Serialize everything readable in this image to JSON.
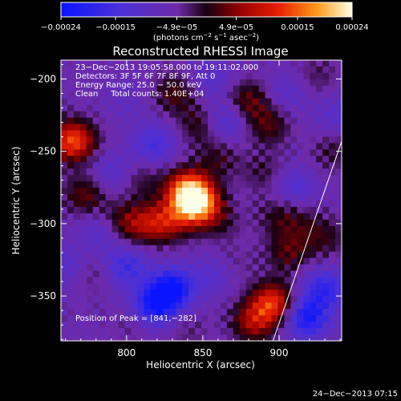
{
  "chart_data": {
    "type": "heatmap",
    "title": "Reconstructed RHESSI Image",
    "xlabel": "Heliocentric X (arcsec)",
    "ylabel": "Heliocentric Y (arcsec)",
    "xlim": [
      757,
      941
    ],
    "ylim": [
      -381,
      -187
    ],
    "x_ticks": [
      800,
      850,
      900
    ],
    "y_ticks": [
      -200,
      -250,
      -300,
      -350
    ],
    "x_tick_labels": [
      "800",
      "850",
      "900"
    ],
    "y_tick_labels": [
      "−200",
      "−250",
      "−300",
      "−350"
    ],
    "colorbar": {
      "range": [
        -0.00024,
        0.00024
      ],
      "tick_values": [
        -0.00024,
        -0.00015,
        -4.9e-05,
        4.9e-05,
        0.00015,
        0.00024
      ],
      "tick_labels": [
        "−0.00024",
        "−0.00015",
        "−4.9e−05",
        "4.9e−05",
        "0.00015",
        "0.00024"
      ],
      "units_prefix": "(photons cm",
      "units_exp1": "−2",
      "units_mid": " s",
      "units_exp2": "−1",
      "units_mid2": " asec",
      "units_exp3": "−2",
      "units_suffix": ")"
    },
    "annotations": {
      "time_range": "23−Dec−2013 19:05:58.000 to 19:11:02.000",
      "detectors": "Detectors: 3F 5F 6F 7F 8F 9F, Att 0",
      "energy_range": "Energy Range: 25.0 − 50.0 keV",
      "method": "Clean     Total counts: 1.40E+04",
      "peak": "Position of Peak = [841,−282]"
    },
    "limb_line": [
      [
        896,
        -381
      ],
      [
        941,
        -243
      ]
    ],
    "sources": [
      {
        "x": 847,
        "y": -287,
        "value": 0.00024
      },
      {
        "x": 840,
        "y": -277,
        "value": 0.00022
      },
      {
        "x": 828,
        "y": -298,
        "value": 0.00012
      },
      {
        "x": 812,
        "y": -300,
        "value": 0.0001
      },
      {
        "x": 795,
        "y": -300,
        "value": 9e-05
      },
      {
        "x": 773,
        "y": -280,
        "value": 9e-05
      },
      {
        "x": 765,
        "y": -243,
        "value": 0.0002
      },
      {
        "x": 810,
        "y": -270,
        "value": 5e-05
      },
      {
        "x": 832,
        "y": -210,
        "value": 8e-05
      },
      {
        "x": 848,
        "y": -232,
        "value": 7e-05
      },
      {
        "x": 860,
        "y": -255,
        "value": 6e-05
      },
      {
        "x": 880,
        "y": -215,
        "value": 9e-05
      },
      {
        "x": 893,
        "y": -232,
        "value": 8e-05
      },
      {
        "x": 890,
        "y": -265,
        "value": 5e-05
      },
      {
        "x": 900,
        "y": -295,
        "value": 6e-05
      },
      {
        "x": 896,
        "y": -355,
        "value": 0.00018
      },
      {
        "x": 883,
        "y": -368,
        "value": 0.00012
      },
      {
        "x": 906,
        "y": -320,
        "value": 8e-05
      },
      {
        "x": 915,
        "y": -300,
        "value": 4e-05
      },
      {
        "x": 930,
        "y": -310,
        "value": 6e-05
      },
      {
        "x": 935,
        "y": -250,
        "value": 5e-05
      },
      {
        "x": 925,
        "y": -198,
        "value": 4e-05
      },
      {
        "x": 775,
        "y": -335,
        "value": 4e-05
      },
      {
        "x": 805,
        "y": -370,
        "value": 3e-05
      },
      {
        "x": 870,
        "y": -330,
        "value": 3e-05
      },
      {
        "x": 862,
        "y": -300,
        "value": 4e-05
      },
      {
        "x": 840,
        "y": -375,
        "value": 3e-05
      },
      {
        "x": 800,
        "y": -330,
        "value": -0.0001
      },
      {
        "x": 830,
        "y": -345,
        "value": -0.00018
      },
      {
        "x": 818,
        "y": -357,
        "value": -0.00016
      },
      {
        "x": 785,
        "y": -305,
        "value": -8e-05
      },
      {
        "x": 918,
        "y": -365,
        "value": -0.00016
      },
      {
        "x": 930,
        "y": -345,
        "value": -0.00012
      },
      {
        "x": 818,
        "y": -245,
        "value": -9e-05
      },
      {
        "x": 790,
        "y": -265,
        "value": -6e-05
      },
      {
        "x": 865,
        "y": -230,
        "value": -8e-05
      },
      {
        "x": 855,
        "y": -200,
        "value": -6e-05
      },
      {
        "x": 905,
        "y": -210,
        "value": -5e-05
      },
      {
        "x": 910,
        "y": -275,
        "value": -7e-05
      },
      {
        "x": 762,
        "y": -330,
        "value": -6e-05
      },
      {
        "x": 858,
        "y": -335,
        "value": -6e-05
      },
      {
        "x": 800,
        "y": -215,
        "value": -3e-05
      },
      {
        "x": 937,
        "y": -225,
        "value": -5e-05
      }
    ]
  },
  "timestamp": "24−Dec−2013 07:15"
}
